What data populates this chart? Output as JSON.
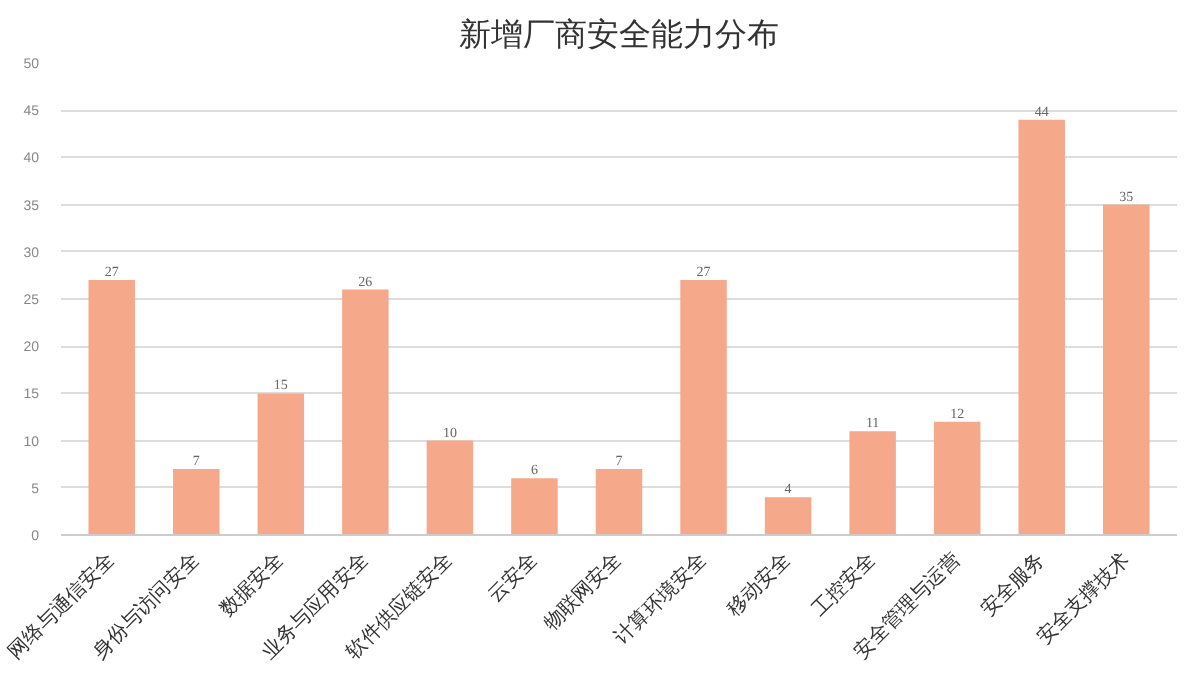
{
  "chart_data": {
    "type": "bar",
    "title": "新增厂商安全能力分布",
    "categories": [
      "网络与通信安全",
      "身份与访问安全",
      "数据安全",
      "业务与应用安全",
      "软件供应链安全",
      "云安全",
      "物联网安全",
      "计算环境安全",
      "移动安全",
      "工控安全",
      "安全管理与运营",
      "安全服务",
      "安全支撑技术"
    ],
    "values": [
      27,
      7,
      15,
      26,
      10,
      6,
      7,
      27,
      4,
      11,
      12,
      44,
      35
    ],
    "color": "#f5a98a",
    "data_labels": true,
    "ylim": [
      0,
      50
    ],
    "yticks": [
      0,
      5,
      10,
      15,
      20,
      25,
      30,
      35,
      40,
      45,
      50
    ],
    "grid": "y"
  }
}
